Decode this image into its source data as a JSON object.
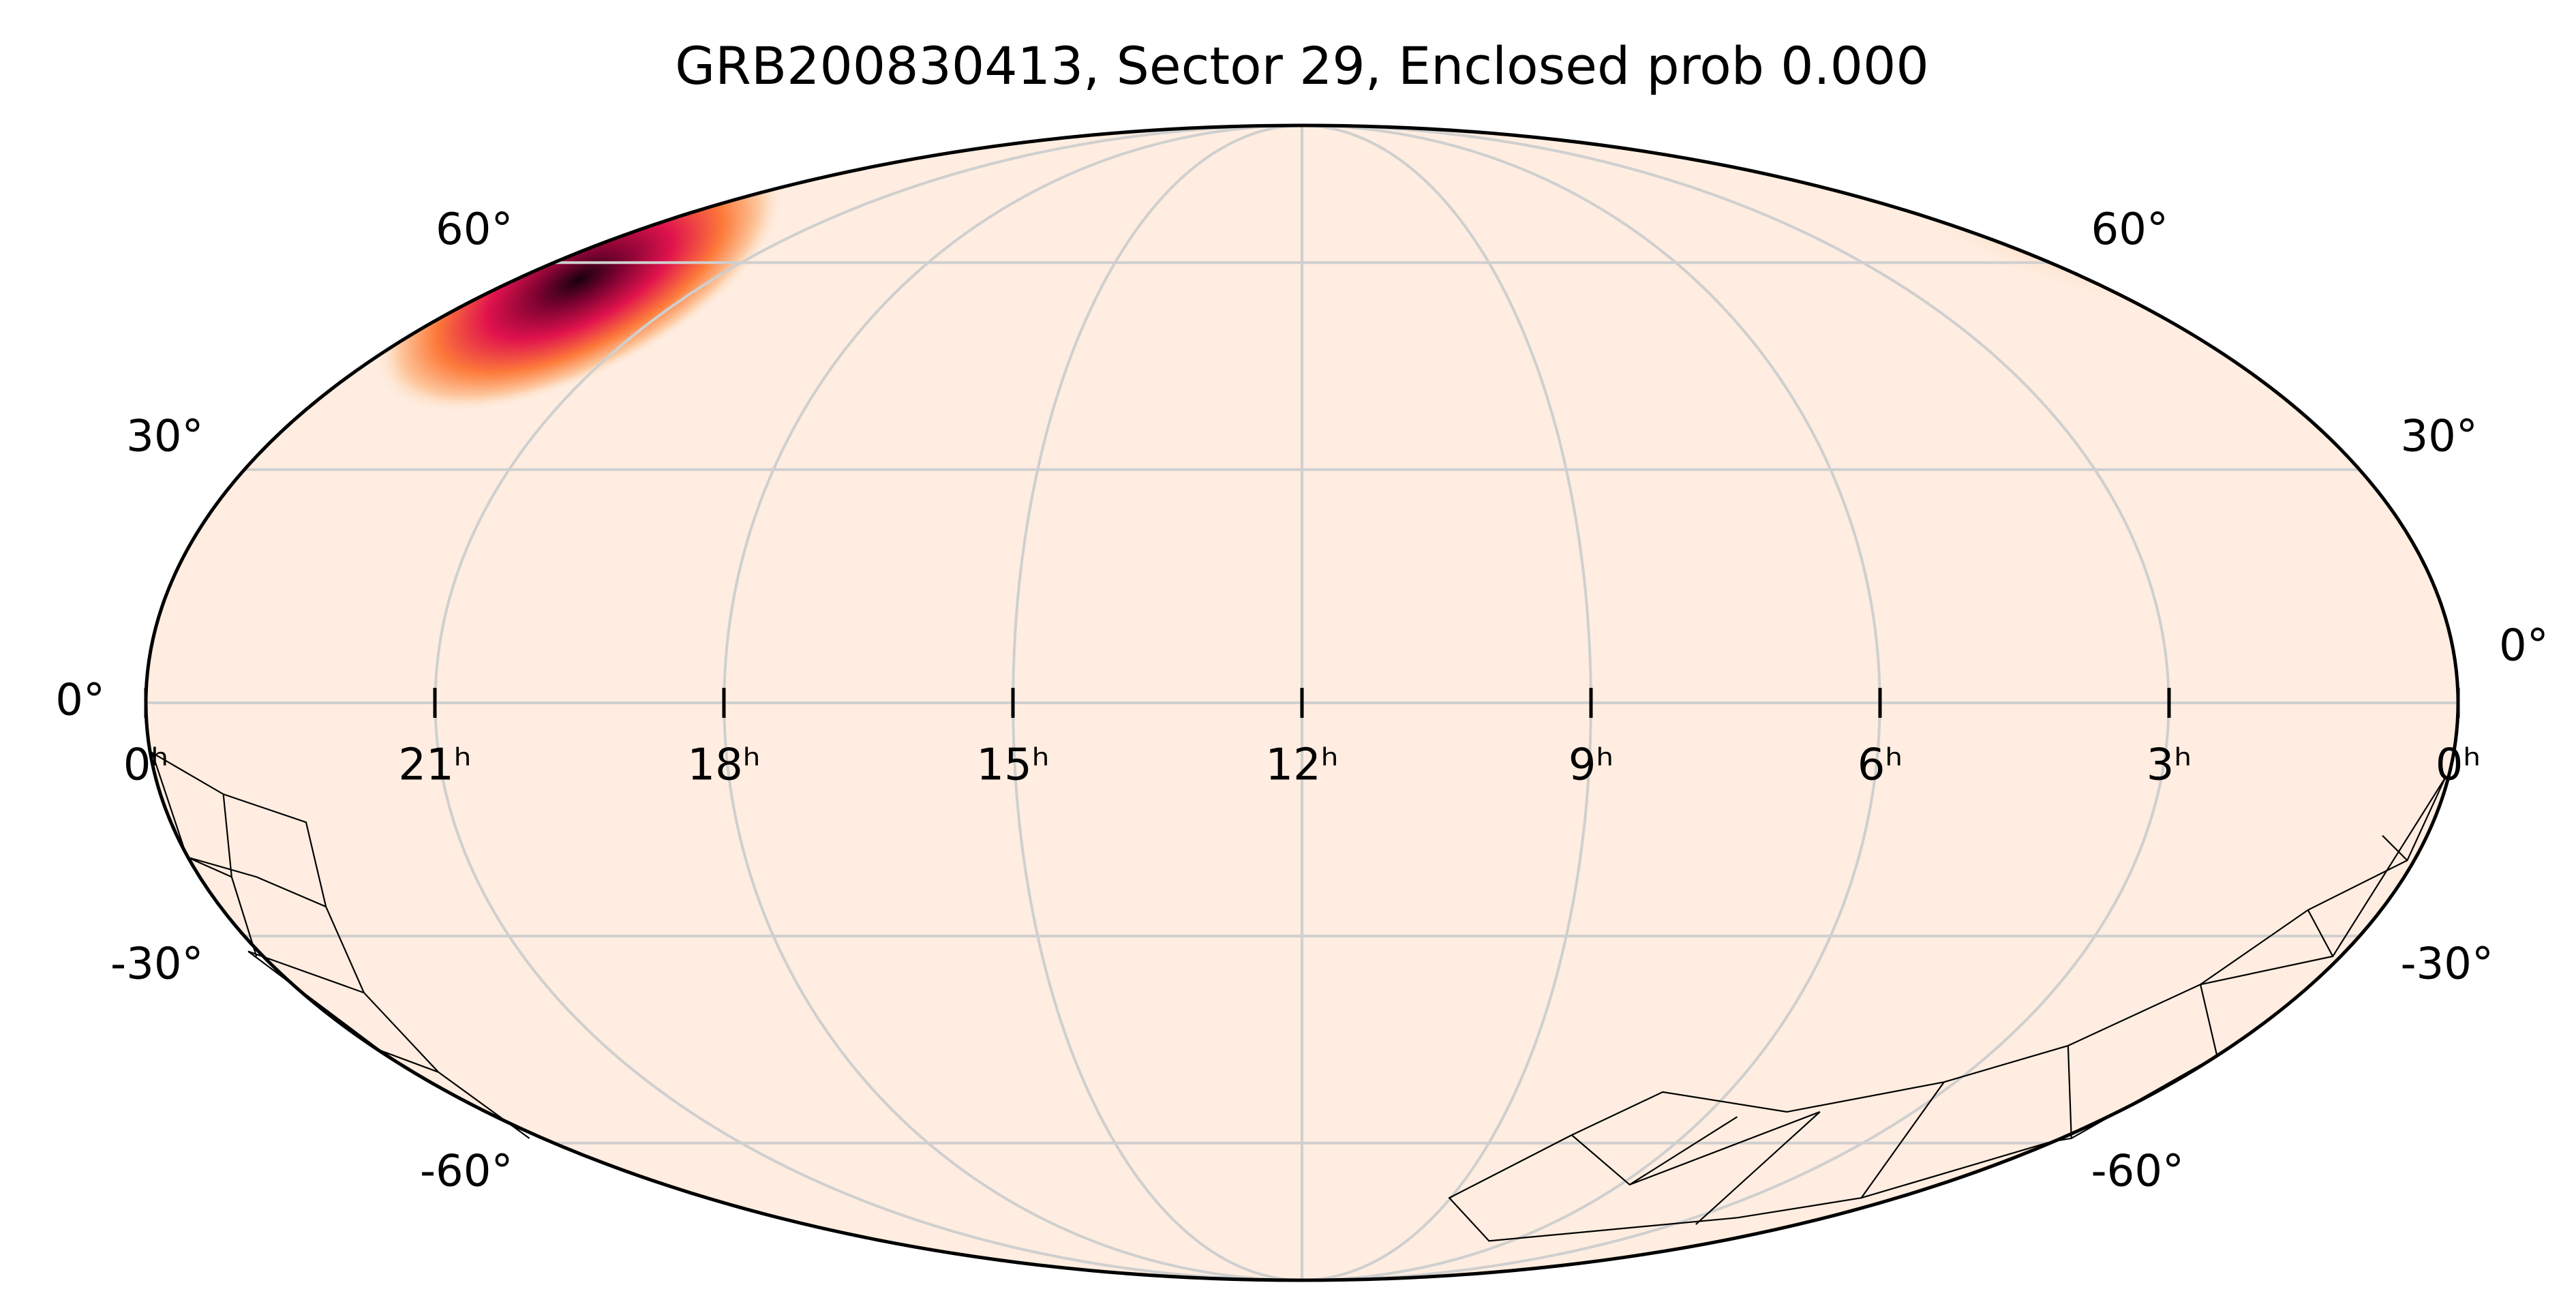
{
  "chart_data": {
    "type": "skymap",
    "projection": "mollweide",
    "title": "GRB200830413, Sector 29, Enclosed prob 0.000",
    "xlim": [
      24,
      0
    ],
    "ylim": [
      -90,
      90
    ],
    "grid": true,
    "xticks": [
      {
        "value": 24,
        "label": "0ʰ"
      },
      {
        "value": 21,
        "label": "21ʰ"
      },
      {
        "value": 18,
        "label": "18ʰ"
      },
      {
        "value": 15,
        "label": "15ʰ"
      },
      {
        "value": 12,
        "label": "12ʰ"
      },
      {
        "value": 9,
        "label": "9ʰ"
      },
      {
        "value": 6,
        "label": "6ʰ"
      },
      {
        "value": 3,
        "label": "3ʰ"
      },
      {
        "value": 0,
        "label": "0ʰ"
      }
    ],
    "yticks": [
      {
        "value": -60,
        "label": "-60°"
      },
      {
        "value": -30,
        "label": "-30°"
      },
      {
        "value": 0,
        "label": "0°"
      },
      {
        "value": 30,
        "label": "30°"
      },
      {
        "value": 60,
        "label": "60°"
      }
    ]
  }
}
